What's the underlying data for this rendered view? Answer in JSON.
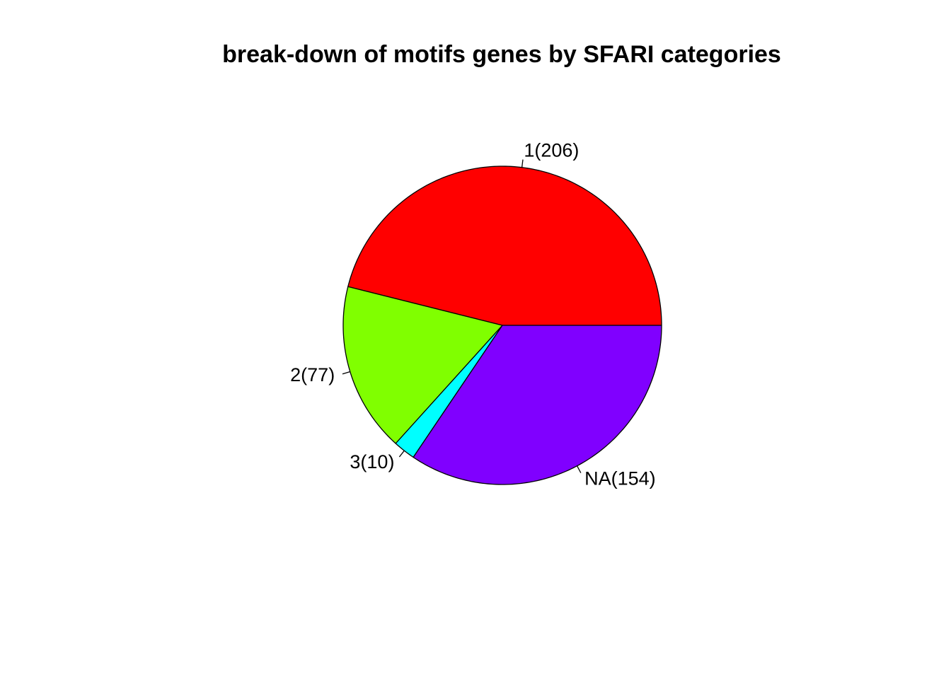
{
  "chart_data": {
    "type": "pie",
    "title": "break-down of motifs genes by SFARI categories",
    "slices": [
      {
        "category": "1",
        "value": 206,
        "label": "1(206)",
        "color": "#ff0000"
      },
      {
        "category": "2",
        "value": 77,
        "label": "2(77)",
        "color": "#80ff00"
      },
      {
        "category": "3",
        "value": 10,
        "label": "3(10)",
        "color": "#00ffff"
      },
      {
        "category": "NA",
        "value": 154,
        "label": "NA(154)",
        "color": "#8000ff"
      }
    ],
    "start_angle_deg": 0,
    "direction": "counterclockwise",
    "border_color": "#000000"
  }
}
